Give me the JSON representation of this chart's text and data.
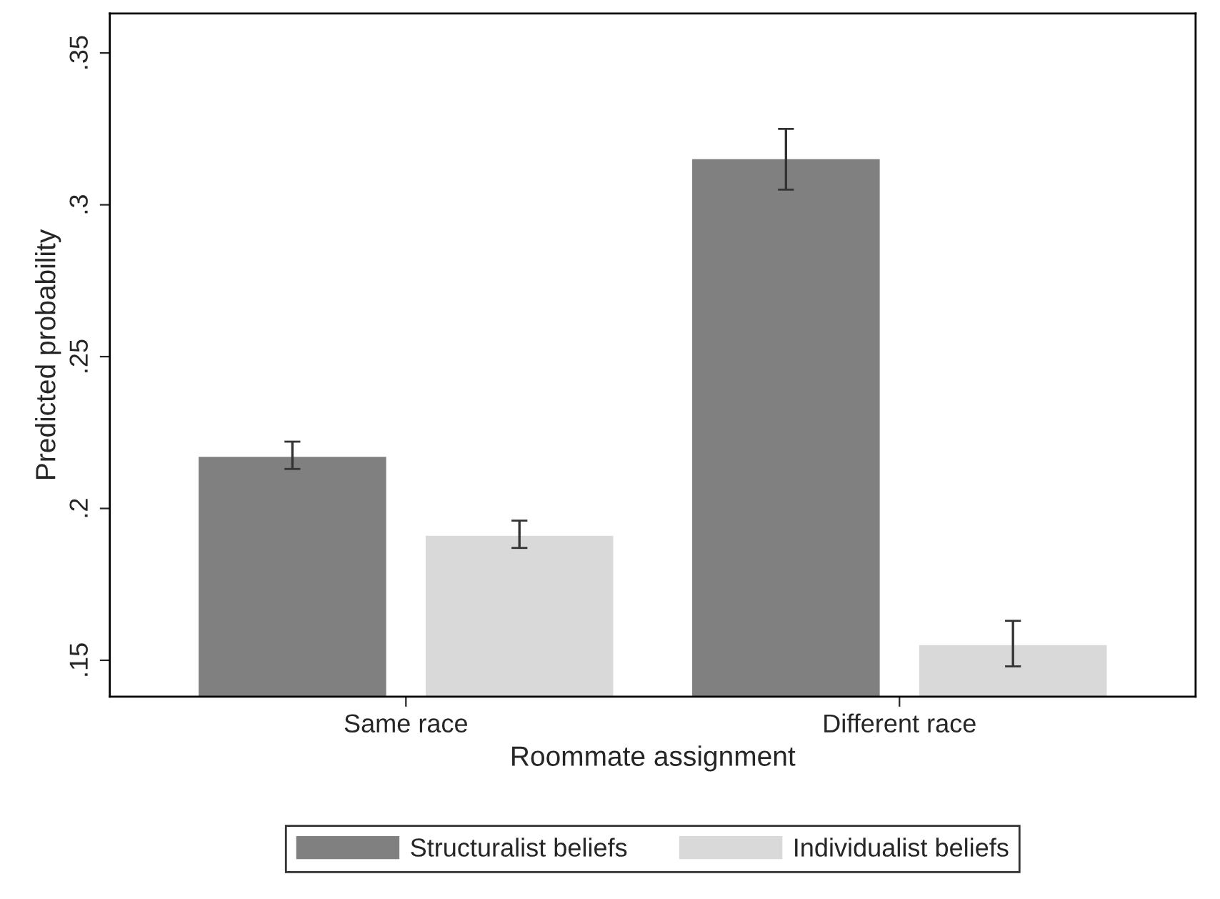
{
  "chart_data": {
    "type": "bar",
    "xlabel": "Roommate assignment",
    "ylabel": "Predicted probability",
    "categories": [
      "Same race",
      "Different race"
    ],
    "series": [
      {
        "name": "Structuralist beliefs",
        "color": "#808080",
        "values": [
          0.217,
          0.315
        ],
        "errors": [
          [
            0.213,
            0.222
          ],
          [
            0.305,
            0.325
          ]
        ]
      },
      {
        "name": "Individualist beliefs",
        "color": "#d9d9d9",
        "values": [
          0.191,
          0.155
        ],
        "errors": [
          [
            0.187,
            0.196
          ],
          [
            0.148,
            0.163
          ]
        ]
      }
    ],
    "ylim": [
      0.138,
      0.363
    ],
    "yticks": [
      {
        "value": 0.15,
        "label": ".15"
      },
      {
        "value": 0.2,
        "label": ".2"
      },
      {
        "value": 0.25,
        "label": ".25"
      },
      {
        "value": 0.3,
        "label": ".3"
      },
      {
        "value": 0.35,
        "label": ".35"
      }
    ],
    "grid": false,
    "legend": "bottom"
  }
}
